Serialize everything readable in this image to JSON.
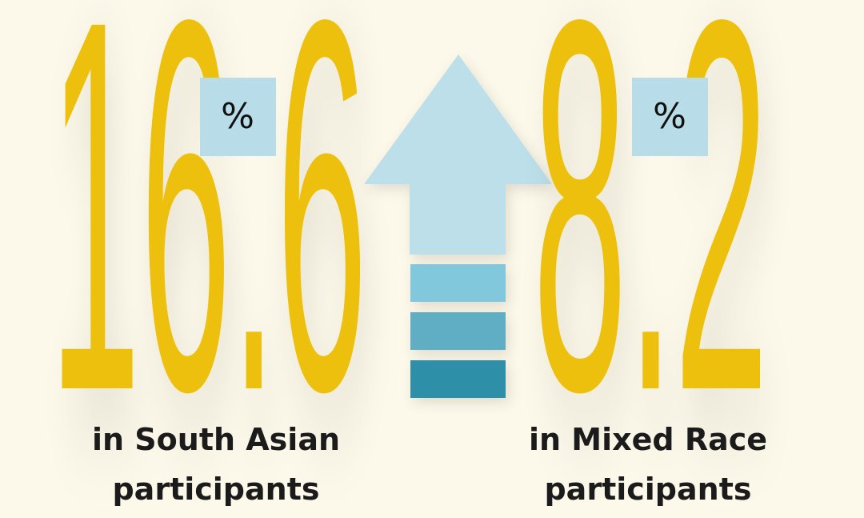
{
  "stats": [
    {
      "value": "16.6",
      "unit": "%",
      "caption": [
        "in South Asian",
        "participants"
      ]
    },
    {
      "value": "8.2",
      "unit": "%",
      "caption": [
        "in Mixed Race",
        "participants"
      ]
    }
  ]
}
